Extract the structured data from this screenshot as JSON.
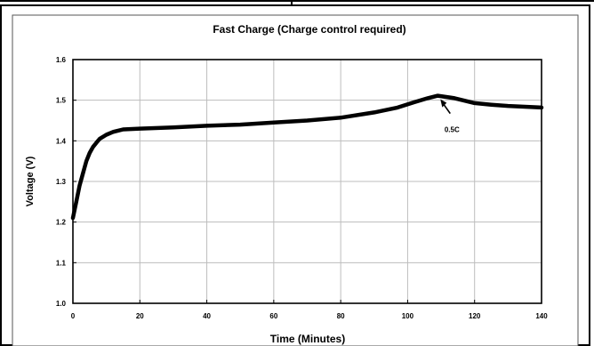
{
  "chart_data": {
    "type": "line",
    "title": "Fast Charge (Charge control required)",
    "xlabel": "Time (Minutes)",
    "ylabel": "Voltage (V)",
    "xlim": [
      0,
      140
    ],
    "ylim": [
      1.0,
      1.6
    ],
    "xticks": [
      0,
      20,
      40,
      60,
      80,
      100,
      120,
      140
    ],
    "yticks": [
      1.0,
      1.1,
      1.2,
      1.3,
      1.4,
      1.5,
      1.6
    ],
    "ytick_labels": [
      "1.0",
      "1.1",
      "1.2",
      "1.3",
      "1.4",
      "1.5",
      "1.6"
    ],
    "grid": true,
    "series": [
      {
        "color": "#000000",
        "x": [
          0,
          1,
          2,
          3,
          4,
          5,
          6,
          7,
          8,
          10,
          12,
          15,
          20,
          30,
          40,
          50,
          60,
          70,
          80,
          90,
          97,
          102,
          106,
          109,
          114,
          120,
          125,
          130,
          135,
          140
        ],
        "y": [
          1.21,
          1.25,
          1.29,
          1.32,
          1.35,
          1.37,
          1.385,
          1.395,
          1.405,
          1.415,
          1.422,
          1.428,
          1.43,
          1.433,
          1.437,
          1.44,
          1.445,
          1.45,
          1.457,
          1.47,
          1.482,
          1.495,
          1.505,
          1.511,
          1.505,
          1.493,
          1.489,
          1.486,
          1.484,
          1.482
        ]
      }
    ],
    "annotations": [
      {
        "text": "0.5C",
        "x": 109,
        "y": 1.511
      }
    ]
  }
}
